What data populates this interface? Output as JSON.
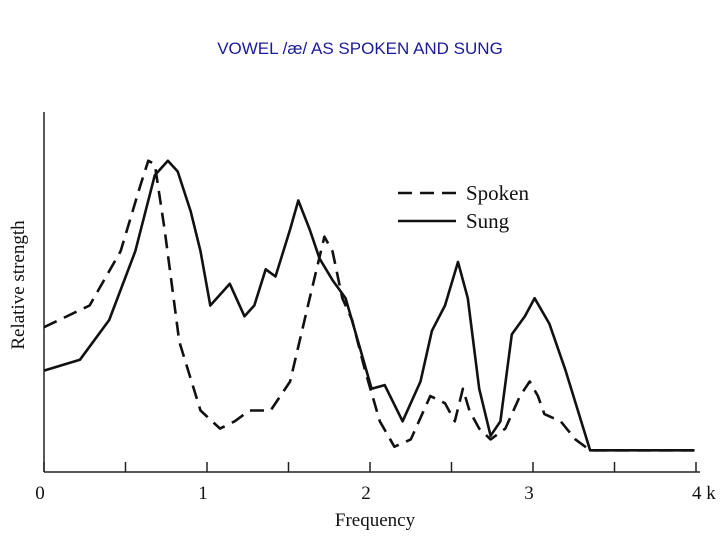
{
  "chart_data": {
    "type": "line",
    "title": "VOWEL /æ/ AS SPOKEN AND SUNG",
    "x_label": "Frequency",
    "y_label": "Relative strength",
    "xlim": [
      0,
      4
    ],
    "ylim": [
      0,
      100
    ],
    "xticks": [
      0,
      1,
      2,
      3,
      {
        "value": 4,
        "label": "4 k"
      }
    ],
    "minor_xticks": [
      0.5,
      1.5,
      2.5,
      3.5
    ],
    "legend": "upper right",
    "series": [
      {
        "name": "Spoken",
        "color": "#111111",
        "line_style": "dashed",
        "x": [
          0,
          0.28,
          0.47,
          0.59,
          0.64,
          0.68,
          0.74,
          0.83,
          0.96,
          1.08,
          1.17,
          1.26,
          1.39,
          1.51,
          1.63,
          1.72,
          1.77,
          1.83,
          1.89,
          1.97,
          2.06,
          2.15,
          2.25,
          2.37,
          2.46,
          2.52,
          2.57,
          2.61,
          2.67,
          2.74,
          2.83,
          2.92,
          2.98,
          3.03,
          3.07,
          3.17,
          3.26,
          3.35,
          3.99
        ],
        "values": [
          40,
          46,
          61,
          79,
          86,
          85,
          67,
          36,
          17,
          12,
          14,
          17,
          17,
          25,
          48,
          65,
          61,
          48,
          42,
          28,
          14,
          7,
          9,
          21,
          19,
          14,
          23,
          17,
          12,
          9,
          12,
          21,
          25,
          21,
          16,
          14,
          9,
          6,
          6
        ]
      },
      {
        "name": "Sung",
        "color": "#111111",
        "line_style": "solid",
        "x": [
          0,
          0.22,
          0.4,
          0.56,
          0.68,
          0.76,
          0.82,
          0.9,
          0.96,
          1.02,
          1.14,
          1.23,
          1.29,
          1.36,
          1.42,
          1.51,
          1.56,
          1.63,
          1.69,
          1.77,
          1.85,
          1.94,
          2.01,
          2.09,
          2.2,
          2.31,
          2.38,
          2.46,
          2.54,
          2.6,
          2.67,
          2.74,
          2.8,
          2.87,
          2.95,
          3.01,
          3.1,
          3.2,
          3.35,
          3.99
        ],
        "values": [
          28,
          31,
          42,
          61,
          82,
          86,
          83,
          72,
          61,
          46,
          52,
          43,
          46,
          56,
          54,
          67,
          75,
          67,
          59,
          53,
          48,
          34,
          23,
          24,
          14,
          25,
          39,
          46,
          58,
          48,
          23,
          10,
          14,
          38,
          43,
          48,
          41,
          28,
          6,
          6
        ]
      }
    ]
  }
}
